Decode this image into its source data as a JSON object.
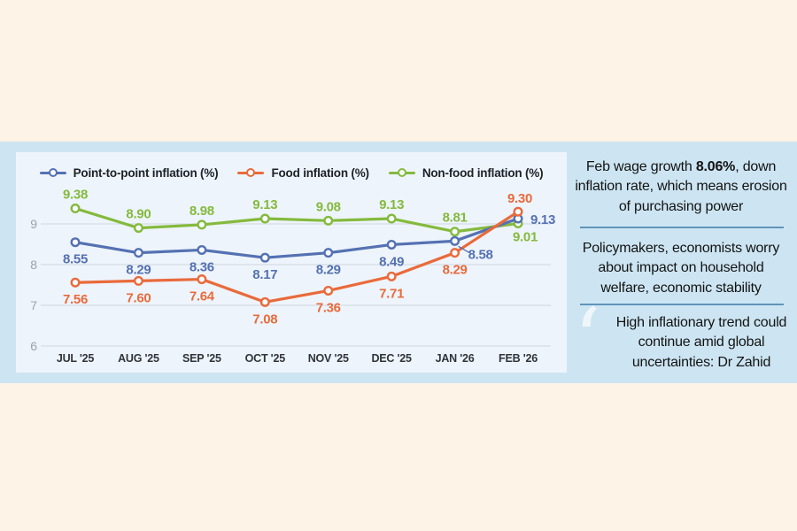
{
  "colors": {
    "page_background": "#fdf3e6",
    "band_background": "#cde5f2",
    "chart_panel_background": "#eef4fb",
    "divider": "#5f94ba",
    "gridline": "#d6dce2",
    "axis_text": "#9aa2ab",
    "month_text": "#2f343b"
  },
  "chart_data": {
    "type": "line",
    "categories": [
      "JUL '25",
      "AUG '25",
      "SEP '25",
      "OCT '25",
      "NOV '25",
      "DEC '25",
      "JAN '26",
      "FEB '26"
    ],
    "series": [
      {
        "name": "Point-to-point inflation (%)",
        "color": "#5471b2",
        "values": [
          8.55,
          8.29,
          8.36,
          8.17,
          8.29,
          8.49,
          8.58,
          9.13
        ]
      },
      {
        "name": "Food inflation (%)",
        "color": "#e96a3b",
        "values": [
          7.56,
          7.6,
          7.64,
          7.08,
          7.36,
          7.71,
          8.29,
          9.3
        ]
      },
      {
        "name": "Non-food inflation (%)",
        "color": "#84ba3d",
        "values": [
          9.38,
          8.9,
          8.98,
          9.13,
          9.08,
          9.13,
          8.81,
          9.01
        ]
      }
    ],
    "yticks": [
      6,
      7,
      8,
      9
    ],
    "ylim": [
      5.8,
      9.9
    ],
    "grid": true,
    "legend_position": "top",
    "title": "",
    "xlabel": "",
    "ylabel": ""
  },
  "side": {
    "panel1": {
      "prefix": "Feb wage growth ",
      "highlight": "8.06%",
      "suffix": ", down inflation rate, which means erosion of purchasing power"
    },
    "panel2": {
      "text": "Policymakers, economists worry about impact on household welfare, economic stability"
    },
    "panel3": {
      "quote_mark": "‘",
      "text": "High inflationary trend could continue amid global uncertainties: Dr Zahid"
    }
  }
}
